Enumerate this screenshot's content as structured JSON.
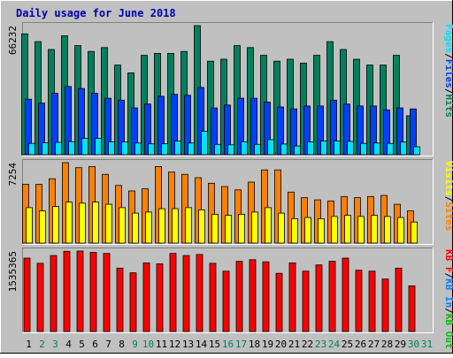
{
  "chart_data": [
    {
      "type": "bar",
      "title": "Daily usage for June 2018",
      "categories": [
        "1",
        "2",
        "3",
        "4",
        "5",
        "6",
        "7",
        "8",
        "9",
        "10",
        "11",
        "12",
        "13",
        "14",
        "15",
        "16",
        "17",
        "18",
        "19",
        "20",
        "21",
        "22",
        "23",
        "24",
        "25",
        "26",
        "27",
        "28",
        "29",
        "30",
        "31"
      ],
      "weekend_days": [
        "2",
        "3",
        "9",
        "10",
        "16",
        "17",
        "23",
        "24",
        "30",
        "31"
      ],
      "y_axis_max_label": "66232",
      "legend": [
        "Pages",
        "Files",
        "Hits"
      ],
      "series": [
        {
          "name": "Hits",
          "color": "#00805c",
          "values": [
            62000,
            58000,
            54000,
            61000,
            56000,
            53000,
            55000,
            46000,
            42000,
            51000,
            52000,
            52000,
            53000,
            66232,
            48000,
            49000,
            56000,
            55000,
            51000,
            48000,
            49000,
            47000,
            51000,
            58000,
            54000,
            49000,
            46000,
            46000,
            51000,
            20000,
            null
          ]
        },
        {
          "name": "Files",
          "color": "#0040ff",
          "values": [
            28500,
            26500,
            31500,
            35000,
            34000,
            31500,
            29000,
            28000,
            24000,
            26000,
            30000,
            31000,
            30500,
            34500,
            24000,
            25500,
            29000,
            29000,
            27000,
            24500,
            23500,
            25000,
            25000,
            28000,
            26000,
            25000,
            25000,
            23000,
            24000,
            23500,
            null
          ]
        },
        {
          "name": "Pages",
          "color": "#00e0ff",
          "values": [
            5800,
            6100,
            6300,
            6700,
            8400,
            8400,
            6600,
            6600,
            6000,
            5600,
            5600,
            7000,
            6000,
            12000,
            5300,
            5100,
            6600,
            5300,
            7700,
            5500,
            4500,
            6600,
            7000,
            7000,
            6800,
            5800,
            6000,
            5800,
            6500,
            4100,
            null
          ]
        }
      ]
    },
    {
      "type": "bar",
      "categories": [
        "1",
        "2",
        "3",
        "4",
        "5",
        "6",
        "7",
        "8",
        "9",
        "10",
        "11",
        "12",
        "13",
        "14",
        "15",
        "16",
        "17",
        "18",
        "19",
        "20",
        "21",
        "22",
        "23",
        "24",
        "25",
        "26",
        "27",
        "28",
        "29",
        "30",
        "31"
      ],
      "y_axis_max_label": "7254",
      "legend": [
        "Visits",
        "Sites"
      ],
      "series": [
        {
          "name": "Sites",
          "color": "#ff8000",
          "values": [
            5300,
            5300,
            5800,
            7254,
            6800,
            6900,
            6200,
            5200,
            4700,
            4900,
            6900,
            6400,
            6200,
            5900,
            5400,
            5100,
            4800,
            5500,
            6600,
            6600,
            4600,
            4100,
            3900,
            3800,
            4200,
            4100,
            4200,
            4300,
            3500,
            2900,
            null
          ]
        },
        {
          "name": "Visits",
          "color": "#ffff00",
          "values": [
            3200,
            2900,
            3300,
            3700,
            3600,
            3700,
            3500,
            3200,
            2700,
            2800,
            3100,
            3100,
            3200,
            3000,
            2600,
            2500,
            2600,
            2800,
            3200,
            2700,
            2200,
            2300,
            2200,
            2400,
            2500,
            2400,
            2500,
            2400,
            2300,
            1900,
            null
          ]
        }
      ]
    },
    {
      "type": "bar",
      "categories": [
        "1",
        "2",
        "3",
        "4",
        "5",
        "6",
        "7",
        "8",
        "9",
        "10",
        "11",
        "12",
        "13",
        "14",
        "15",
        "16",
        "17",
        "18",
        "19",
        "20",
        "21",
        "22",
        "23",
        "24",
        "25",
        "26",
        "27",
        "28",
        "29",
        "30",
        "31"
      ],
      "y_axis_max_label": "1535365",
      "legend": [
        "KB F",
        "KB In",
        "KB Out"
      ],
      "series": [
        {
          "name": "KB F",
          "color": "#ff0000",
          "values": [
            1400000,
            1300000,
            1450000,
            1530000,
            1535365,
            1510000,
            1490000,
            1210000,
            1120000,
            1310000,
            1290000,
            1490000,
            1450000,
            1470000,
            1300000,
            1150000,
            1340000,
            1370000,
            1330000,
            1110000,
            1310000,
            1150000,
            1270000,
            1340000,
            1400000,
            1170000,
            1150000,
            1000000,
            1210000,
            870000,
            null
          ]
        }
      ]
    }
  ]
}
